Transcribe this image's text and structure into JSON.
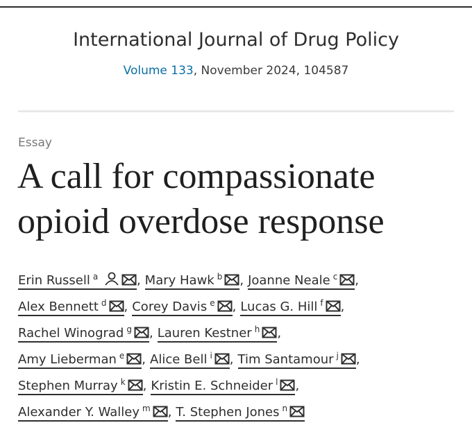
{
  "header": {
    "journal": "International Journal of Drug Policy",
    "volume_link": "Volume 133",
    "issue_info": ", November 2024, 104587"
  },
  "article": {
    "type": "Essay",
    "title_lines": [
      "A call for compassionate",
      "opioid overdose response"
    ]
  },
  "separator": ",",
  "author_lines": [
    [
      {
        "name": "Erin Russell",
        "affiliation": "a",
        "corresponding": true
      },
      {
        "name": "Mary Hawk",
        "affiliation": "b"
      },
      {
        "name": "Joanne Neale",
        "affiliation": "c"
      }
    ],
    [
      {
        "name": "Alex Bennett",
        "affiliation": "d"
      },
      {
        "name": "Corey Davis",
        "affiliation": "e"
      },
      {
        "name": "Lucas G. Hill",
        "affiliation": "f"
      }
    ],
    [
      {
        "name": "Rachel Winograd",
        "affiliation": "g"
      },
      {
        "name": "Lauren Kestner",
        "affiliation": "h"
      }
    ],
    [
      {
        "name": "Amy Lieberman",
        "affiliation": "e"
      },
      {
        "name": "Alice Bell",
        "affiliation": "i"
      },
      {
        "name": "Tim Santamour",
        "affiliation": "j"
      }
    ],
    [
      {
        "name": "Stephen Murray",
        "affiliation": "k"
      },
      {
        "name": "Kristin E. Schneider",
        "affiliation": "l"
      }
    ],
    [
      {
        "name": "Alexander Y. Walley",
        "affiliation": "m"
      },
      {
        "name": "T. Stephen Jones",
        "affiliation": "n"
      }
    ]
  ]
}
